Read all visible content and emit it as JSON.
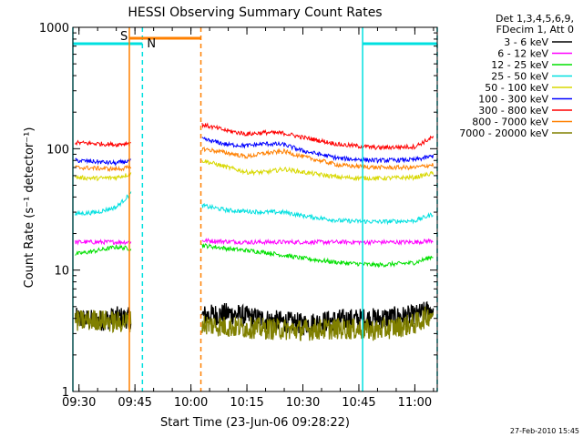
{
  "chart_data": {
    "type": "line",
    "title": "HESSI Observing Summary Count Rates",
    "xlabel": "Start Time (23-Jun-06 09:28:22)",
    "ylabel": "Count Rate (s⁻¹ detector⁻¹)",
    "y_scale": "log",
    "ylim": [
      1,
      1000
    ],
    "xlim": [
      "09:28:22",
      "11:06:00"
    ],
    "x_ticks": [
      "09:30",
      "09:45",
      "10:00",
      "10:15",
      "10:30",
      "10:45",
      "11:00"
    ],
    "y_ticks": [
      "1",
      "10",
      "100",
      "1000"
    ],
    "timestamp": "27-Feb-2010 15:45",
    "legend_header": [
      "Det 1,3,4,5,6,9,",
      "FDecim 1, Att 0"
    ],
    "legend_position": "right",
    "markers": {
      "s_label": "S",
      "n_label": "N",
      "saa": {
        "start": "09:43:30",
        "end": "10:02:40",
        "color": "#ff8000"
      },
      "night": [
        {
          "start": "09:28:22",
          "end": "09:47:00",
          "color": "#00e0e0"
        },
        {
          "start": "10:46:00",
          "end": "11:06:00",
          "color": "#00e0e0"
        }
      ]
    },
    "gaps": [
      {
        "start": "09:44:10",
        "end": "10:02:40"
      }
    ],
    "series": [
      {
        "name": "3 - 6 keV",
        "color": "#000000",
        "values": [
          [
            "09:29",
            4.0
          ],
          [
            "09:35",
            3.8
          ],
          [
            "09:40",
            4.1
          ],
          [
            "09:44",
            4.0
          ],
          [
            "10:03",
            4.2
          ],
          [
            "10:10",
            4.4
          ],
          [
            "10:20",
            3.9
          ],
          [
            "10:30",
            3.6
          ],
          [
            "10:40",
            3.9
          ],
          [
            "10:50",
            4.0
          ],
          [
            "11:00",
            4.2
          ],
          [
            "11:05",
            4.8
          ]
        ]
      },
      {
        "name": "6 - 12 keV",
        "color": "#ff00ff",
        "values": [
          [
            "09:29",
            17
          ],
          [
            "09:35",
            17
          ],
          [
            "09:40",
            17
          ],
          [
            "09:44",
            17
          ],
          [
            "10:03",
            17.5
          ],
          [
            "10:15",
            17
          ],
          [
            "10:30",
            17
          ],
          [
            "10:45",
            17
          ],
          [
            "11:00",
            17
          ],
          [
            "11:05",
            17.5
          ]
        ]
      },
      {
        "name": "12 - 25 keV",
        "color": "#00e000",
        "values": [
          [
            "09:29",
            13.5
          ],
          [
            "09:35",
            14.5
          ],
          [
            "09:40",
            15.5
          ],
          [
            "09:44",
            15
          ],
          [
            "10:03",
            16
          ],
          [
            "10:10",
            15
          ],
          [
            "10:20",
            14
          ],
          [
            "10:30",
            12.5
          ],
          [
            "10:40",
            11.5
          ],
          [
            "10:50",
            11
          ],
          [
            "11:00",
            11.5
          ],
          [
            "11:05",
            13
          ]
        ]
      },
      {
        "name": "25 - 50 keV",
        "color": "#00e0e0",
        "values": [
          [
            "09:29",
            29
          ],
          [
            "09:35",
            30
          ],
          [
            "09:40",
            33
          ],
          [
            "09:44",
            43
          ],
          [
            "10:03",
            34
          ],
          [
            "10:10",
            31
          ],
          [
            "10:20",
            30
          ],
          [
            "10:25",
            30
          ],
          [
            "10:30",
            28
          ],
          [
            "10:40",
            25.5
          ],
          [
            "10:50",
            25
          ],
          [
            "11:00",
            25.5
          ],
          [
            "11:05",
            29
          ]
        ]
      },
      {
        "name": "50 - 100 keV",
        "color": "#d8d800",
        "values": [
          [
            "09:29",
            58
          ],
          [
            "09:35",
            57
          ],
          [
            "09:40",
            58
          ],
          [
            "09:44",
            62
          ],
          [
            "10:03",
            80
          ],
          [
            "10:10",
            70
          ],
          [
            "10:15",
            64
          ],
          [
            "10:20",
            64
          ],
          [
            "10:25",
            68
          ],
          [
            "10:30",
            64
          ],
          [
            "10:40",
            58
          ],
          [
            "10:50",
            57
          ],
          [
            "11:00",
            58
          ],
          [
            "11:05",
            63
          ]
        ]
      },
      {
        "name": "100 - 300 keV",
        "color": "#0000ff",
        "values": [
          [
            "09:29",
            80
          ],
          [
            "09:35",
            78
          ],
          [
            "09:40",
            76
          ],
          [
            "09:44",
            80
          ],
          [
            "10:03",
            120
          ],
          [
            "10:10",
            108
          ],
          [
            "10:15",
            106
          ],
          [
            "10:20",
            110
          ],
          [
            "10:25",
            108
          ],
          [
            "10:30",
            96
          ],
          [
            "10:40",
            83
          ],
          [
            "10:50",
            80
          ],
          [
            "11:00",
            81
          ],
          [
            "11:05",
            87
          ]
        ]
      },
      {
        "name": "300 - 800 keV",
        "color": "#ff0000",
        "values": [
          [
            "09:29",
            112
          ],
          [
            "09:35",
            110
          ],
          [
            "09:40",
            108
          ],
          [
            "09:44",
            112
          ],
          [
            "10:03",
            158
          ],
          [
            "10:10",
            140
          ],
          [
            "10:15",
            132
          ],
          [
            "10:20",
            136
          ],
          [
            "10:25",
            134
          ],
          [
            "10:30",
            124
          ],
          [
            "10:40",
            108
          ],
          [
            "10:50",
            102
          ],
          [
            "11:00",
            104
          ],
          [
            "11:05",
            125
          ]
        ]
      },
      {
        "name": "800 - 7000 keV",
        "color": "#ff8000",
        "values": [
          [
            "09:29",
            70
          ],
          [
            "09:35",
            69
          ],
          [
            "09:40",
            68
          ],
          [
            "09:44",
            70
          ],
          [
            "10:03",
            100
          ],
          [
            "10:10",
            92
          ],
          [
            "10:15",
            86
          ],
          [
            "10:20",
            92
          ],
          [
            "10:25",
            95
          ],
          [
            "10:30",
            86
          ],
          [
            "10:40",
            73
          ],
          [
            "10:50",
            70
          ],
          [
            "11:00",
            70
          ],
          [
            "11:05",
            74
          ]
        ]
      },
      {
        "name": "7000 - 20000 keV",
        "color": "#808000",
        "values": [
          [
            "09:29",
            3.8
          ],
          [
            "09:35",
            3.9
          ],
          [
            "09:40",
            3.7
          ],
          [
            "09:44",
            3.8
          ],
          [
            "10:03",
            3.6
          ],
          [
            "10:10",
            3.4
          ],
          [
            "10:20",
            3.3
          ],
          [
            "10:30",
            3.2
          ],
          [
            "10:40",
            3.3
          ],
          [
            "10:50",
            3.2
          ],
          [
            "11:00",
            3.6
          ],
          [
            "11:05",
            4.5
          ]
        ]
      }
    ]
  }
}
